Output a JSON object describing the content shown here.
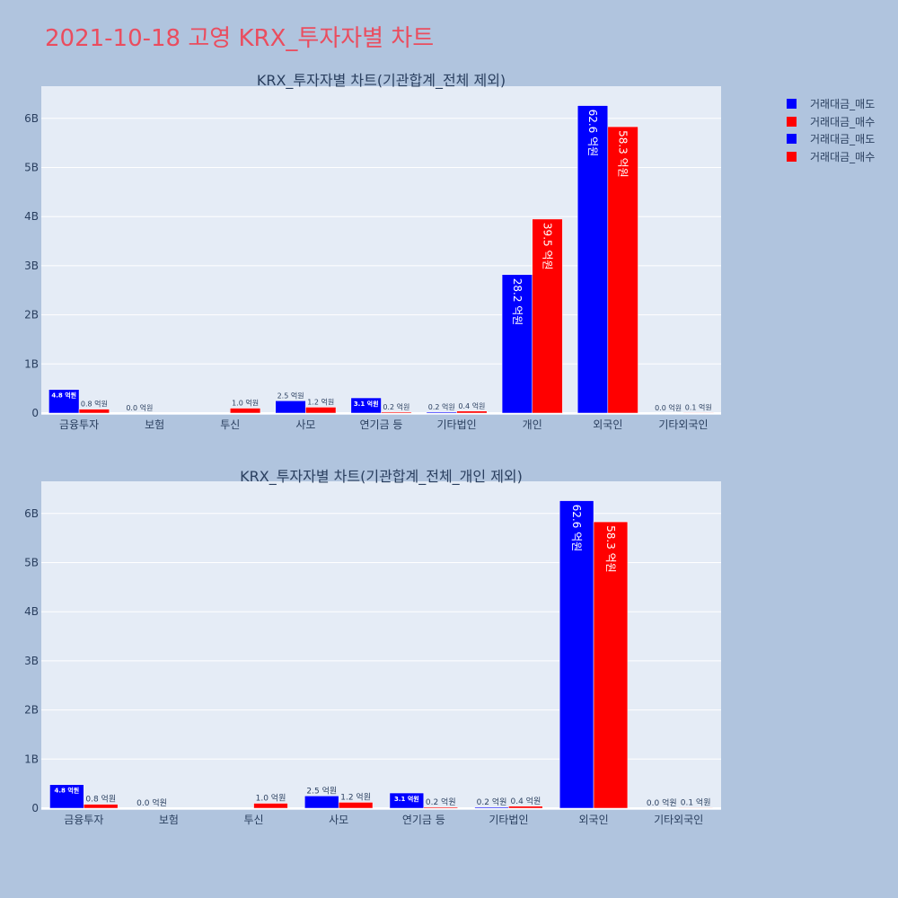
{
  "main_title": "2021-10-18 고영 KRX_투자자별 차트",
  "legend": [
    {
      "label": "거래대금_매도",
      "color": "#0000ff"
    },
    {
      "label": "거래대금_매수",
      "color": "#ff0000"
    },
    {
      "label": "거래대금_매도",
      "color": "#0000ff"
    },
    {
      "label": "거래대금_매수",
      "color": "#ff0000"
    }
  ],
  "chart_data": [
    {
      "type": "bar",
      "title": "KRX_투자자별 차트(기관합계_전체 제외)",
      "categories": [
        "금융투자",
        "보험",
        "투신",
        "사모",
        "연기금 등",
        "기타법인",
        "개인",
        "외국인",
        "기타외국인"
      ],
      "yticks": [
        "0",
        "1B",
        "2B",
        "3B",
        "4B",
        "5B",
        "6B"
      ],
      "ylim": [
        0,
        6.5
      ],
      "series": [
        {
          "name": "거래대금_매도",
          "color": "#0000ff",
          "values": [
            0.48,
            0.0,
            0.0,
            0.25,
            0.31,
            0.02,
            2.82,
            6.26,
            0.0
          ],
          "labels": [
            "4.8 억원",
            "0.0 억원",
            "",
            "2.5 억원",
            "3.1 억원",
            "0.2 억원",
            "28.2 억원",
            "62.6 억원",
            "0.0 억원"
          ]
        },
        {
          "name": "거래대금_매수",
          "color": "#ff0000",
          "values": [
            0.08,
            0.0,
            0.1,
            0.12,
            0.02,
            0.04,
            3.95,
            5.83,
            0.01
          ],
          "labels": [
            "0.8 억원",
            "",
            "1.0 억원",
            "1.2 억원",
            "0.2 억원",
            "0.4 억원",
            "39.5 억원",
            "58.3 억원",
            "0.1 억원"
          ]
        }
      ]
    },
    {
      "type": "bar",
      "title": "KRX_투자자별 차트(기관합계_전체_개인 제외)",
      "categories": [
        "금융투자",
        "보험",
        "투신",
        "사모",
        "연기금 등",
        "기타법인",
        "외국인",
        "기타외국인"
      ],
      "yticks": [
        "0",
        "1B",
        "2B",
        "3B",
        "4B",
        "5B",
        "6B"
      ],
      "ylim": [
        0,
        6.5
      ],
      "series": [
        {
          "name": "거래대금_매도",
          "color": "#0000ff",
          "values": [
            0.48,
            0.0,
            0.0,
            0.25,
            0.31,
            0.02,
            6.26,
            0.0
          ],
          "labels": [
            "4.8 억원",
            "0.0 억원",
            "",
            "2.5 억원",
            "3.1 억원",
            "0.2 억원",
            "62.6 억원",
            "0.0 억원"
          ]
        },
        {
          "name": "거래대금_매수",
          "color": "#ff0000",
          "values": [
            0.08,
            0.0,
            0.1,
            0.12,
            0.02,
            0.04,
            5.83,
            0.01
          ],
          "labels": [
            "0.8 억원",
            "",
            "1.0 억원",
            "1.2 억원",
            "0.2 억원",
            "0.4 억원",
            "58.3 억원",
            "0.1 억원"
          ]
        }
      ]
    }
  ]
}
